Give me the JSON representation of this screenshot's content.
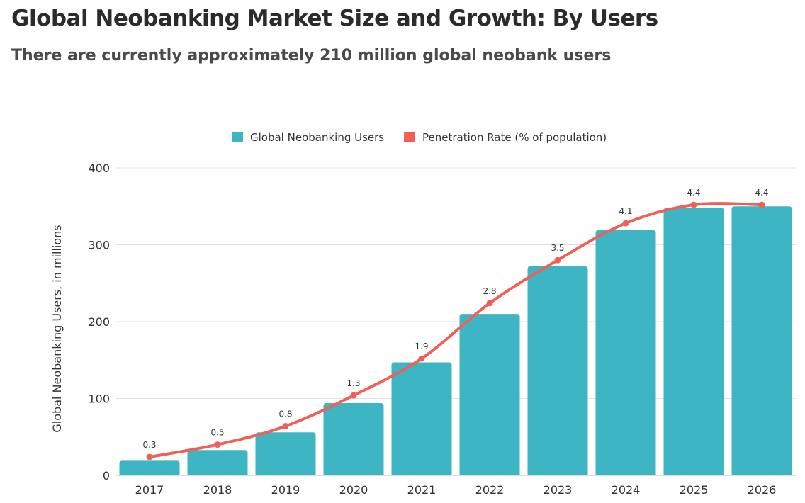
{
  "header": {
    "title": "Global Neobanking Market Size and Growth: By Users",
    "subtitle": "There are currently approximately 210 million global neobank users"
  },
  "chart_data": {
    "type": "bar+line",
    "categories": [
      "2017",
      "2018",
      "2019",
      "2020",
      "2021",
      "2022",
      "2023",
      "2024",
      "2025",
      "2026"
    ],
    "series": [
      {
        "name": "Global Neobanking Users",
        "type": "bar",
        "axis": "left",
        "color": "#3db5c2",
        "values": [
          19,
          33,
          56,
          94,
          147,
          210,
          272,
          319,
          348,
          350
        ]
      },
      {
        "name": "Penetration Rate (% of population)",
        "type": "line",
        "axis": "right",
        "color": "#f06057",
        "values": [
          0.3,
          0.5,
          0.8,
          1.3,
          1.9,
          2.8,
          3.5,
          4.1,
          4.4,
          4.4
        ],
        "labels": [
          "0.3",
          "0.5",
          "0.8",
          "1.3",
          "1.9",
          "2.8",
          "3.5",
          "4.1",
          "4.4",
          "4.4"
        ]
      }
    ],
    "ylabel": "Global Neobanking Users, in millions",
    "ylim": [
      0,
      400
    ],
    "yticks": [
      "0",
      "100",
      "200",
      "300",
      "400"
    ],
    "y2lim": [
      0,
      5
    ],
    "grid": true,
    "legend": "top"
  }
}
